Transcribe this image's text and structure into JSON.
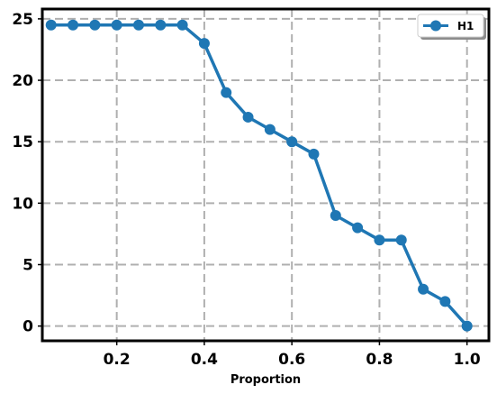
{
  "chart_data": {
    "type": "line",
    "title": "",
    "xlabel": "Proportion",
    "ylabel": "",
    "xlim": [
      0.03,
      1.05
    ],
    "ylim": [
      -1.2,
      25.8
    ],
    "x_ticks": [
      0.2,
      0.4,
      0.6,
      0.8,
      1.0
    ],
    "x_tick_labels": [
      "0.2",
      "0.4",
      "0.6",
      "0.8",
      "1.0"
    ],
    "y_ticks": [
      0,
      5,
      10,
      15,
      20,
      25
    ],
    "y_tick_labels": [
      "0",
      "5",
      "10",
      "15",
      "20",
      "25"
    ],
    "grid": true,
    "legend_position": "top-right",
    "series": [
      {
        "name": "H1",
        "color": "#1f77b4",
        "marker": "circle",
        "x": [
          0.05,
          0.1,
          0.15,
          0.2,
          0.25,
          0.3,
          0.35,
          0.4,
          0.45,
          0.5,
          0.55,
          0.6,
          0.65,
          0.7,
          0.75,
          0.8,
          0.85,
          0.9,
          0.95,
          1.0
        ],
        "y": [
          24.5,
          24.5,
          24.5,
          24.5,
          24.5,
          24.5,
          24.5,
          23,
          19,
          17,
          16,
          15,
          14,
          9,
          8,
          7,
          7,
          3,
          2,
          0
        ]
      }
    ]
  }
}
